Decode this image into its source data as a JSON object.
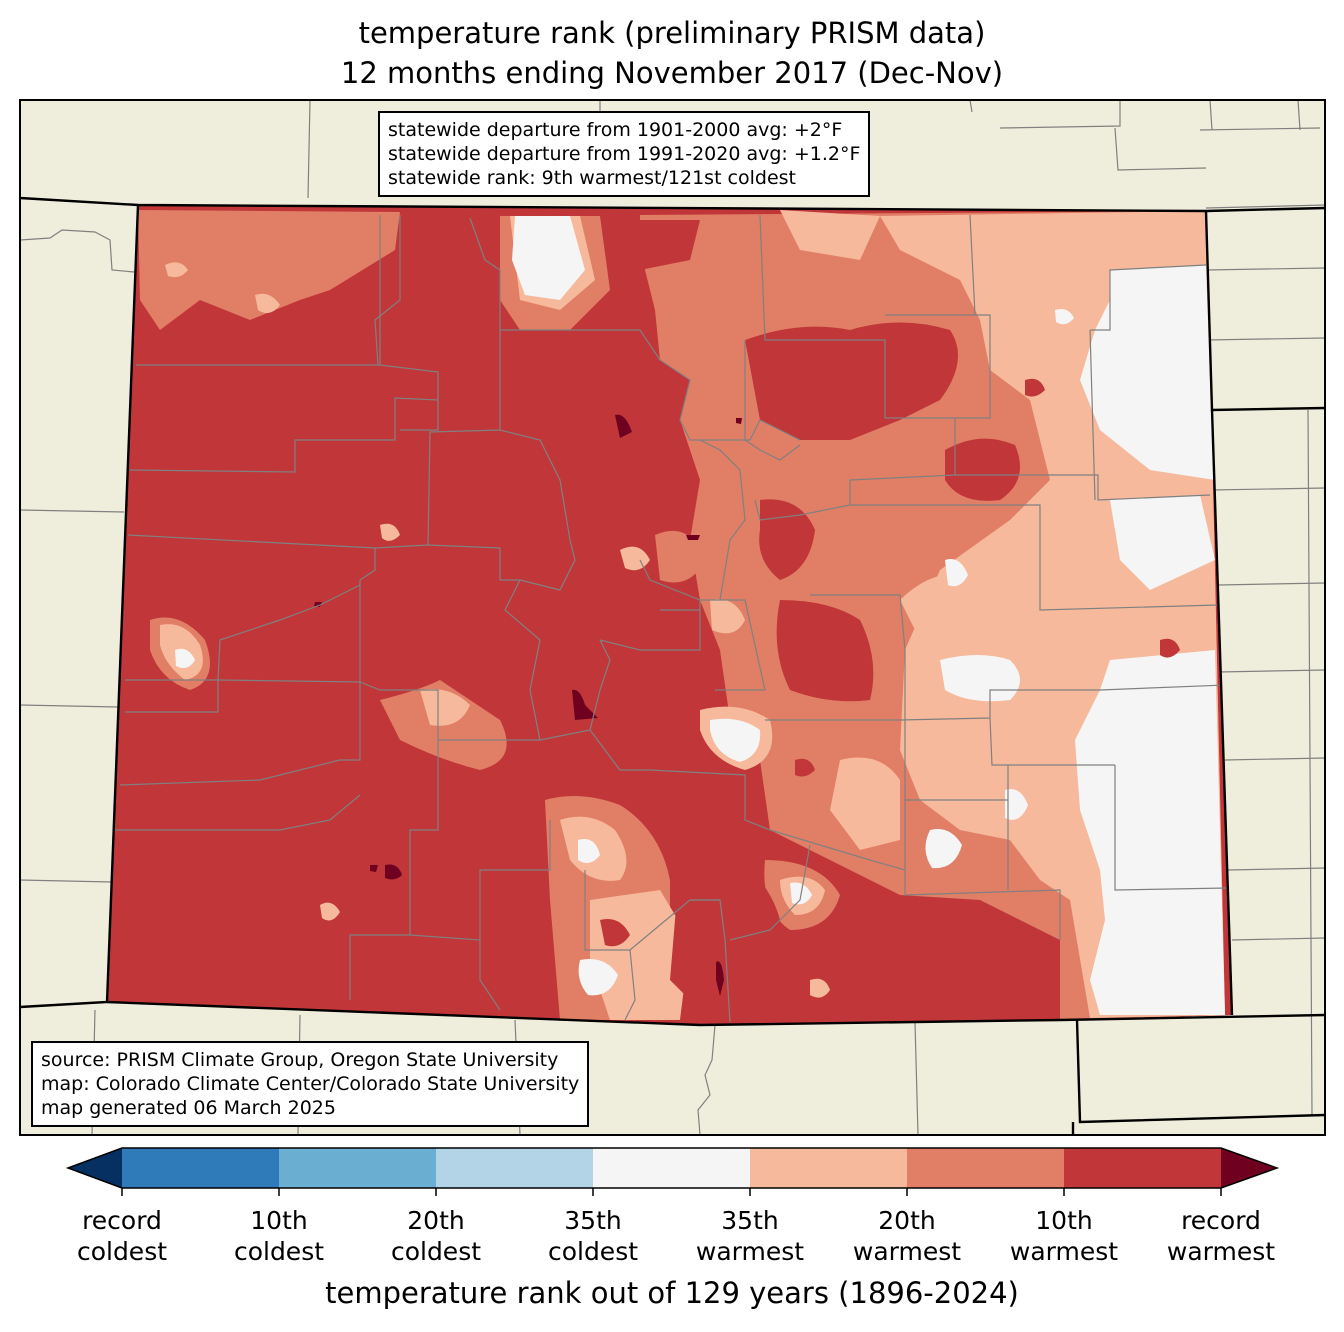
{
  "title": {
    "line1": "temperature rank (preliminary PRISM data)",
    "line2": "12 months ending November 2017 (Dec-Nov)"
  },
  "stats": {
    "line1": "statewide departure from 1901-2000 avg: +2°F",
    "line2": "statewide departure from 1991-2020 avg: +1.2°F",
    "line3": "statewide rank: 9th warmest/121st coldest"
  },
  "credits": {
    "line1": "source: PRISM Climate Group, Oregon State University",
    "line2": "map: Colorado Climate Center/Colorado State University",
    "line3": "map generated 06 March 2025"
  },
  "colors": {
    "background_land": "#efeedc",
    "record_coldest": "#053061",
    "c10": "#2f7ab8",
    "c20": "#6aaed2",
    "c35": "#b2d4e6",
    "neutral": "#f5f5f5",
    "w35": "#f7b99c",
    "w20": "#e17e66",
    "w10": "#c13639",
    "record_warmest": "#6f0020",
    "county_lines": "#808080"
  },
  "colorbar": {
    "labels": [
      {
        "top": "record",
        "bottom": "coldest"
      },
      {
        "top": "10th",
        "bottom": "coldest"
      },
      {
        "top": "20th",
        "bottom": "coldest"
      },
      {
        "top": "35th",
        "bottom": "coldest"
      },
      {
        "top": "35th",
        "bottom": "warmest"
      },
      {
        "top": "20th",
        "bottom": "warmest"
      },
      {
        "top": "10th",
        "bottom": "warmest"
      },
      {
        "top": "record",
        "bottom": "warmest"
      }
    ],
    "title": "temperature rank out of 129 years (1896-2024)"
  }
}
